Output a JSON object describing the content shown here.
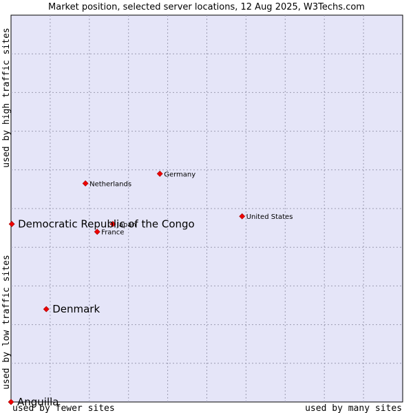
{
  "chart_data": {
    "type": "scatter",
    "title": "Market position, selected server locations, 12 Aug 2025, W3Techs.com",
    "xlabel_left": "used by fewer sites",
    "xlabel_right": "used by many sites",
    "ylabel_top": "used by high traffic sites",
    "ylabel_bottom": "used by low traffic sites",
    "xlim": [
      0,
      10
    ],
    "ylim": [
      0,
      10
    ],
    "grid": true,
    "marker_color": "#ee0000",
    "plot_background": "#e5e5f8",
    "points": [
      {
        "name": "Germany",
        "x": 3.8,
        "y": 5.9,
        "size": "small"
      },
      {
        "name": "Netherlands",
        "x": 1.9,
        "y": 5.65,
        "size": "small"
      },
      {
        "name": "United States",
        "x": 5.9,
        "y": 4.8,
        "size": "small"
      },
      {
        "name": "Japan",
        "x": 2.6,
        "y": 4.6,
        "size": "small"
      },
      {
        "name": "France",
        "x": 2.2,
        "y": 4.4,
        "size": "small"
      },
      {
        "name": "Democratic Republic of the Congo",
        "x": 0.02,
        "y": 4.6,
        "size": "large"
      },
      {
        "name": "Denmark",
        "x": 0.9,
        "y": 2.4,
        "size": "large"
      },
      {
        "name": "Anguilla",
        "x": 0.0,
        "y": 0.0,
        "size": "large"
      }
    ]
  }
}
